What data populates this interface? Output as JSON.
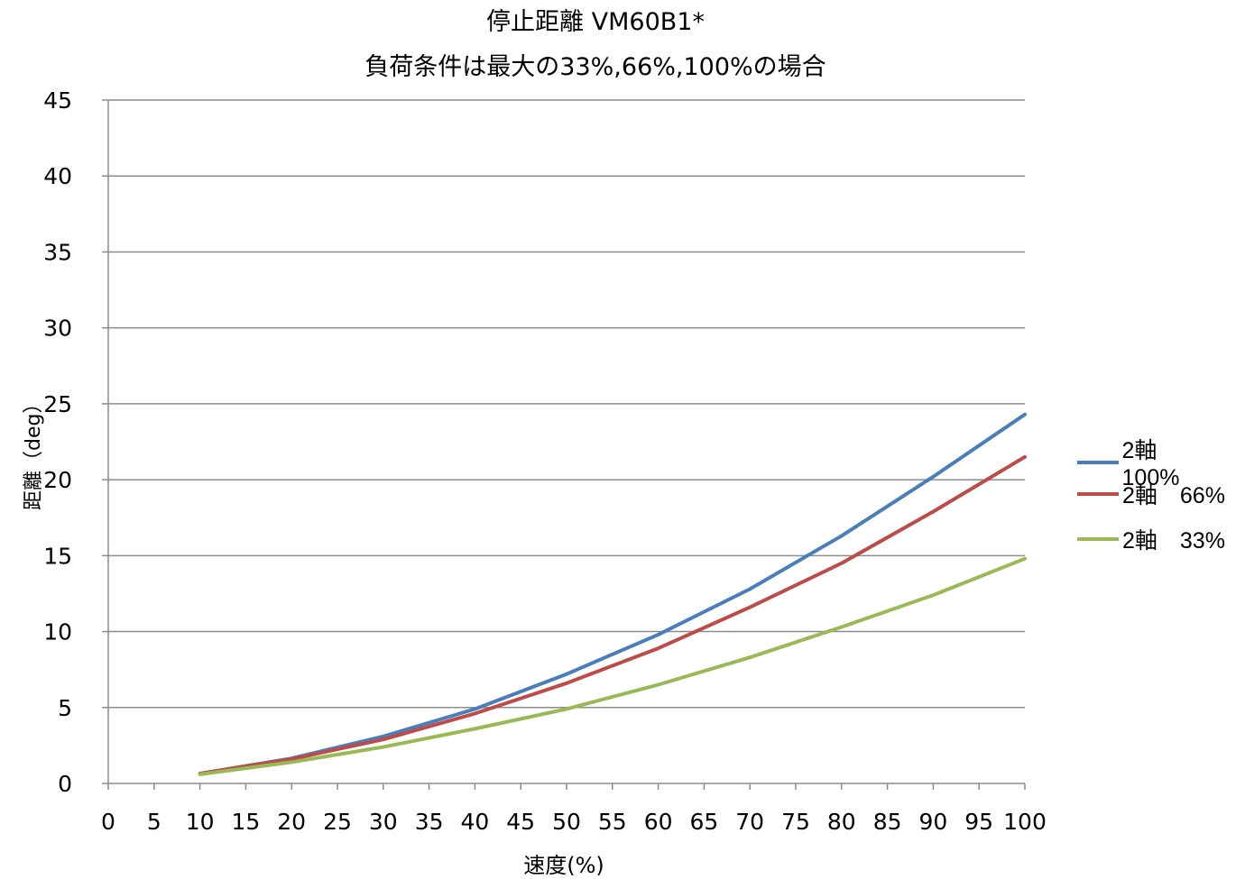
{
  "chart_data": {
    "type": "line",
    "title": "停止距離 VM60B1*",
    "subtitle": "負荷条件は最大の33%,66%,100%の場合",
    "xlabel": "速度(%)",
    "ylabel": "距離（deg）",
    "xlim": [
      0,
      100
    ],
    "ylim": [
      0,
      45
    ],
    "x_ticks": [
      0,
      5,
      10,
      15,
      20,
      25,
      30,
      35,
      40,
      45,
      50,
      55,
      60,
      65,
      70,
      75,
      80,
      85,
      90,
      95,
      100
    ],
    "y_ticks": [
      0,
      5,
      10,
      15,
      20,
      25,
      30,
      35,
      40,
      45
    ],
    "grid": "horizontal",
    "legend_position": "right",
    "x": [
      10,
      20,
      30,
      40,
      50,
      60,
      70,
      80,
      90,
      100
    ],
    "series": [
      {
        "name": "2軸　100%",
        "color": "#4a7ebb",
        "values": [
          0.65,
          1.65,
          3.1,
          4.9,
          7.2,
          9.8,
          12.8,
          16.3,
          20.2,
          24.3
        ]
      },
      {
        "name": "2軸　66%",
        "color": "#be4b48",
        "values": [
          0.65,
          1.6,
          2.9,
          4.6,
          6.6,
          8.9,
          11.6,
          14.5,
          17.9,
          21.5
        ]
      },
      {
        "name": "2軸　33%",
        "color": "#98b954",
        "values": [
          0.6,
          1.4,
          2.4,
          3.6,
          4.9,
          6.5,
          8.3,
          10.3,
          12.4,
          14.8
        ]
      }
    ]
  }
}
